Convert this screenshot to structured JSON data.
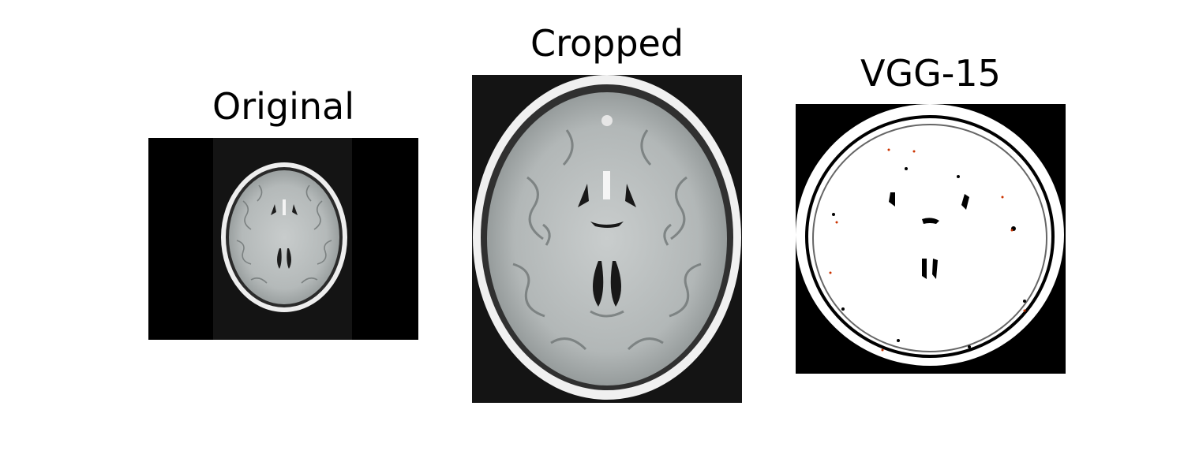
{
  "panels": [
    {
      "title": "Original",
      "content": "axial brain MRI slice, small, centered on black background"
    },
    {
      "title": "Cropped",
      "content": "axial brain MRI slice cropped to skull boundary"
    },
    {
      "title": "VGG-15",
      "content": "binary mask output: white brain region with black skull outline and ventricles"
    }
  ],
  "colors": {
    "background": "#ffffff",
    "image_black": "#000000",
    "mri_gray": "#bfc3c3",
    "mask_white": "#ffffff",
    "mask_speckle": "#cc3300"
  }
}
